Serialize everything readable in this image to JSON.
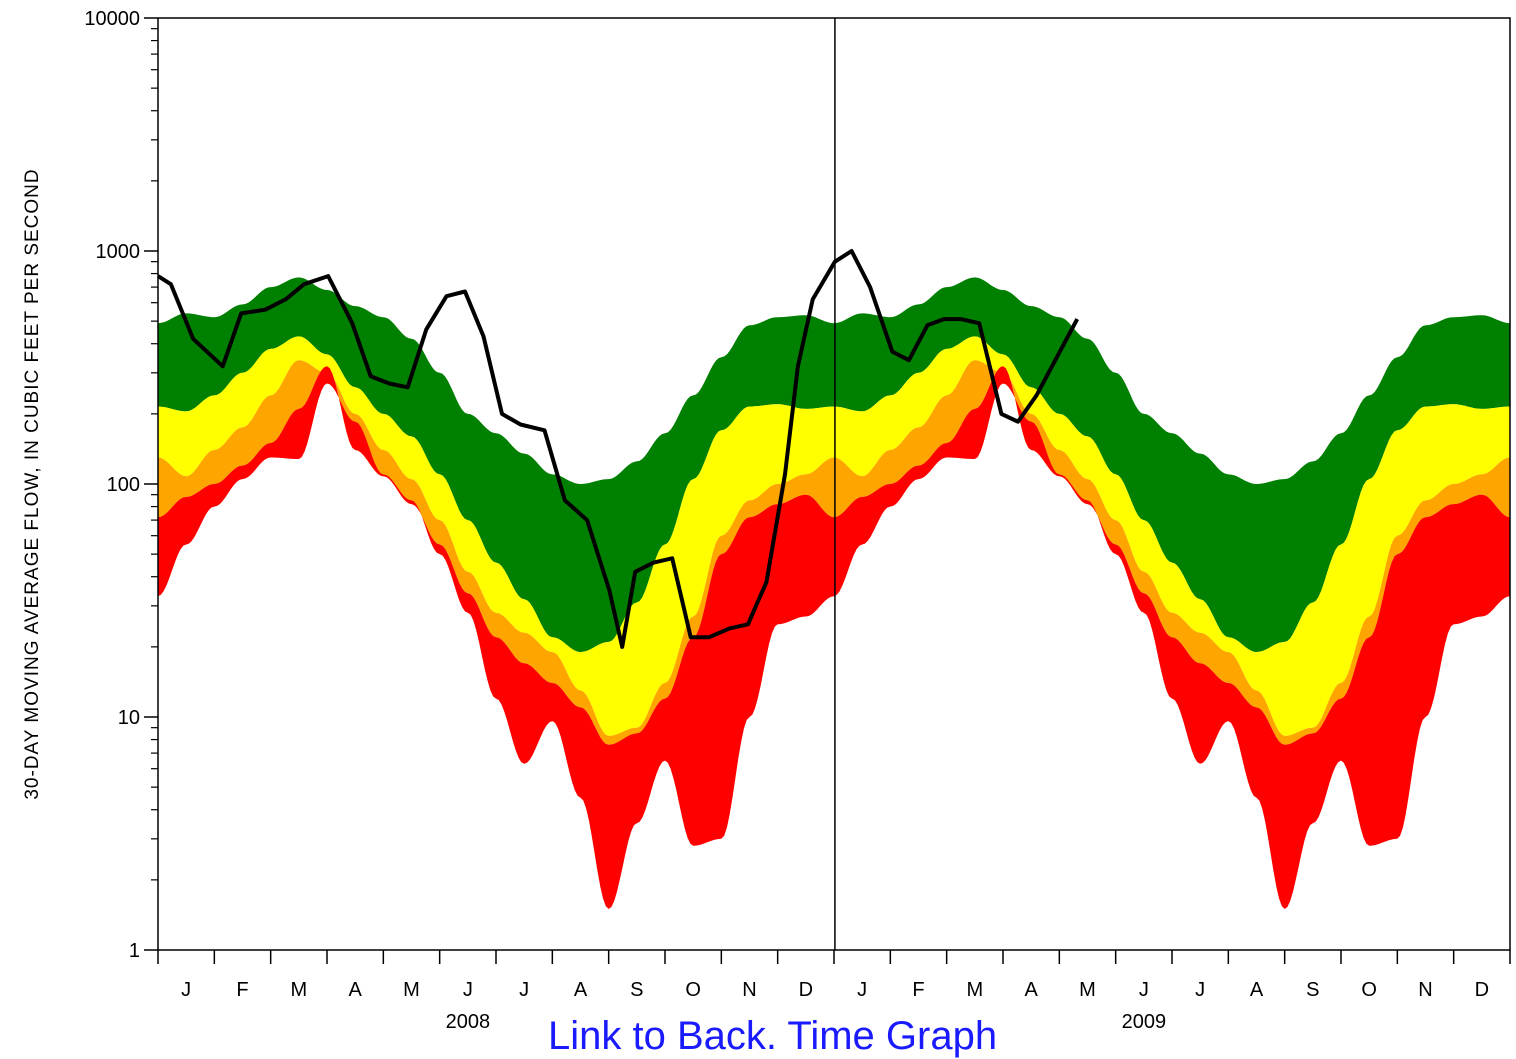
{
  "chart_data": {
    "type": "area",
    "ylabel": "30-DAY MOVING AVERAGE FLOW, IN CUBIC FEET PER SECOND",
    "yscale": "log",
    "ylim": [
      1,
      10000
    ],
    "yticks": [
      "1",
      "10",
      "100",
      "1000",
      "10000"
    ],
    "x_start": "2008-01-01",
    "x_end": "2009-12-31",
    "year_divider": "2009-01-01",
    "month_labels": [
      "J",
      "F",
      "M",
      "A",
      "M",
      "J",
      "J",
      "A",
      "S",
      "O",
      "N",
      "D",
      "J",
      "F",
      "M",
      "A",
      "M",
      "J",
      "J",
      "A",
      "S",
      "O",
      "N",
      "D"
    ],
    "year_labels": [
      {
        "label": "2008",
        "month_index": 5.5
      },
      {
        "label": "2009",
        "month_index": 17.5
      }
    ],
    "band_colors": {
      "above_normal": "#008000",
      "normal": "#ffff00",
      "below_normal": "#ffa500",
      "much_below_normal": "#ff0000"
    },
    "climatology": {
      "month": [
        0,
        0.5,
        1,
        1.5,
        2,
        2.5,
        3,
        3.5,
        4,
        4.5,
        5,
        5.5,
        6,
        6.5,
        7,
        7.5,
        8,
        8.5,
        9,
        9.5,
        10,
        10.5,
        11,
        11.5,
        12
      ],
      "green_top": [
        490,
        540,
        520,
        590,
        700,
        770,
        680,
        580,
        520,
        420,
        300,
        200,
        165,
        135,
        110,
        100,
        105,
        125,
        165,
        240,
        350,
        480,
        520,
        530,
        490
      ],
      "green_bottom": [
        215,
        205,
        240,
        300,
        380,
        430,
        360,
        260,
        200,
        160,
        110,
        70,
        46,
        32,
        22,
        19,
        21,
        31,
        55,
        105,
        170,
        215,
        220,
        210,
        215
      ],
      "yellow_bottom": [
        130,
        108,
        140,
        175,
        240,
        340,
        300,
        200,
        140,
        105,
        70,
        42,
        28,
        23,
        19,
        13,
        8.3,
        9,
        14,
        27,
        60,
        85,
        100,
        110,
        130
      ],
      "orange_bottom": [
        72,
        88,
        100,
        120,
        150,
        210,
        320,
        140,
        108,
        82,
        55,
        34,
        22,
        17,
        14,
        11,
        7.6,
        8.5,
        12,
        22,
        50,
        72,
        82,
        90,
        72
      ],
      "red_bottom": [
        33,
        55,
        80,
        105,
        130,
        128,
        270,
        185,
        110,
        85,
        50,
        28,
        12,
        6.3,
        9.6,
        4.5,
        1.5,
        3.5,
        6.5,
        2.8,
        3.0,
        10,
        25,
        27,
        33
      ]
    },
    "series": [
      {
        "type": "line",
        "color": "#000000",
        "dates": [
          "2008-01-01",
          "2008-01-08",
          "2008-01-20",
          "2008-02-05",
          "2008-02-15",
          "2008-02-28",
          "2008-03-10",
          "2008-03-20",
          "2008-04-02",
          "2008-04-15",
          "2008-04-25",
          "2008-05-05",
          "2008-05-15",
          "2008-05-25",
          "2008-06-05",
          "2008-06-15",
          "2008-06-25",
          "2008-07-05",
          "2008-07-15",
          "2008-07-28",
          "2008-08-08",
          "2008-08-20",
          "2008-09-01",
          "2008-09-08",
          "2008-09-15",
          "2008-09-25",
          "2008-10-05",
          "2008-10-15",
          "2008-10-25",
          "2008-11-05",
          "2008-11-15",
          "2008-11-25",
          "2008-12-05",
          "2008-12-12",
          "2008-12-20",
          "2009-01-01",
          "2009-01-10",
          "2009-01-20",
          "2009-02-01",
          "2009-02-10",
          "2009-02-20",
          "2009-03-01",
          "2009-03-10",
          "2009-03-20",
          "2009-04-01",
          "2009-04-10",
          "2009-04-20",
          "2009-05-01",
          "2009-05-12"
        ],
        "values": [
          780,
          720,
          420,
          320,
          540,
          560,
          620,
          720,
          780,
          490,
          290,
          270,
          260,
          460,
          640,
          670,
          430,
          200,
          180,
          170,
          85,
          70,
          35,
          20,
          42,
          46,
          48,
          22,
          22,
          24,
          25,
          38,
          110,
          320,
          620,
          900,
          1000,
          700,
          370,
          340,
          480,
          510,
          510,
          490,
          200,
          185,
          240,
          350,
          510
        ]
      }
    ],
    "links": {
      "text": "Link to Back. Time Graph"
    }
  }
}
